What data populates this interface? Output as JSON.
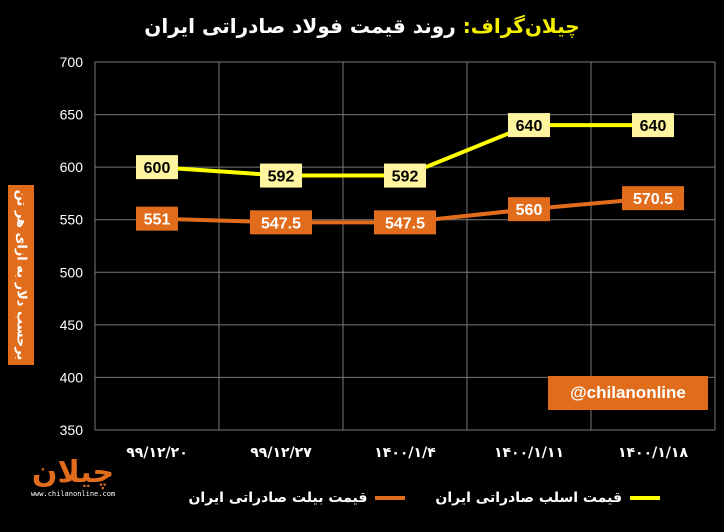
{
  "header": {
    "brand": "چیلان‌گراف:",
    "title": "روند قیمت فولاد صادراتی ایران"
  },
  "handle": "@chilanonline",
  "logo": {
    "mark": "چیلان",
    "site": "www.chilanonline.com"
  },
  "chart_data": {
    "type": "line",
    "categories": [
      "۹۹/۱۲/۲۰",
      "۹۹/۱۲/۲۷",
      "۱۴۰۰/۱/۴",
      "۱۴۰۰/۱/۱۱",
      "۱۴۰۰/۱/۱۸"
    ],
    "series": [
      {
        "name": "قیمت اسلب صادراتی ایران",
        "color": "#ffff00",
        "values": [
          600,
          592,
          592,
          640,
          640
        ],
        "labels": [
          "600",
          "592",
          "592",
          "640",
          "640"
        ]
      },
      {
        "name": "قیمت بیلت صادراتی ایران",
        "color": "#e06c1c",
        "values": [
          551,
          547.5,
          547.5,
          560,
          570.5
        ],
        "labels": [
          "551",
          "547.5",
          "547.5",
          "560",
          "570.5"
        ]
      }
    ],
    "ylabel": "برحسب دلار به ازای هر تن",
    "ylim": [
      350,
      700
    ],
    "yticks": [
      "350",
      "400",
      "450",
      "500",
      "550",
      "600",
      "650",
      "700"
    ],
    "grid": true,
    "legend": "bottom"
  }
}
